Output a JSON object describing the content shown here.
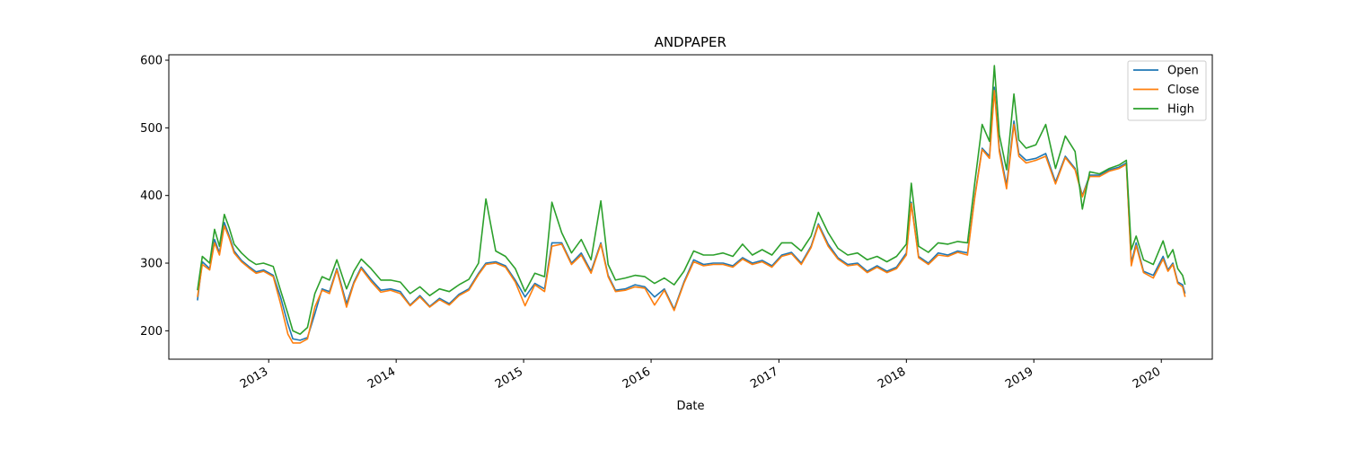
{
  "chart_data": {
    "type": "line",
    "title": "ANDPAPER",
    "xlabel": "Date",
    "ylabel": "",
    "xlim": [
      "2012-03-21",
      "2020-05-26"
    ],
    "ylim": [
      158,
      608
    ],
    "x_ticks": [
      "2013-01-01",
      "2014-01-01",
      "2015-01-01",
      "2016-01-01",
      "2017-01-01",
      "2018-01-01",
      "2019-01-01",
      "2020-01-01"
    ],
    "x_tick_labels": [
      "2013",
      "2014",
      "2015",
      "2016",
      "2017",
      "2018",
      "2019",
      "2020"
    ],
    "y_ticks": [
      200,
      300,
      400,
      500,
      600
    ],
    "y_tick_labels": [
      "200",
      "300",
      "400",
      "500",
      "600"
    ],
    "grid": false,
    "legend_position": "top-right",
    "x": [
      "2012-06-11",
      "2012-06-25",
      "2012-07-16",
      "2012-07-30",
      "2012-08-13",
      "2012-08-27",
      "2012-09-10",
      "2012-09-24",
      "2012-10-15",
      "2012-11-05",
      "2012-11-26",
      "2012-12-17",
      "2013-01-14",
      "2013-02-04",
      "2013-02-25",
      "2013-03-11",
      "2013-04-01",
      "2013-04-22",
      "2013-05-13",
      "2013-06-03",
      "2013-06-24",
      "2013-07-15",
      "2013-08-12",
      "2013-09-02",
      "2013-09-23",
      "2013-10-21",
      "2013-11-18",
      "2013-12-16",
      "2014-01-13",
      "2014-02-10",
      "2014-03-10",
      "2014-04-07",
      "2014-05-05",
      "2014-06-02",
      "2014-06-30",
      "2014-07-28",
      "2014-08-25",
      "2014-09-15",
      "2014-10-13",
      "2014-11-10",
      "2014-12-08",
      "2015-01-05",
      "2015-02-02",
      "2015-03-02",
      "2015-03-23",
      "2015-04-20",
      "2015-05-18",
      "2015-06-15",
      "2015-07-13",
      "2015-08-10",
      "2015-08-31",
      "2015-09-21",
      "2015-10-19",
      "2015-11-16",
      "2015-12-14",
      "2016-01-11",
      "2016-02-08",
      "2016-03-07",
      "2016-04-04",
      "2016-05-02",
      "2016-05-30",
      "2016-06-27",
      "2016-07-25",
      "2016-08-22",
      "2016-09-19",
      "2016-10-17",
      "2016-11-14",
      "2016-12-12",
      "2017-01-09",
      "2017-02-06",
      "2017-03-06",
      "2017-04-03",
      "2017-04-24",
      "2017-05-22",
      "2017-06-19",
      "2017-07-17",
      "2017-08-14",
      "2017-09-11",
      "2017-10-09",
      "2017-11-06",
      "2017-12-04",
      "2018-01-01",
      "2018-01-15",
      "2018-02-05",
      "2018-03-05",
      "2018-04-02",
      "2018-04-30",
      "2018-05-28",
      "2018-06-25",
      "2018-07-16",
      "2018-08-06",
      "2018-08-27",
      "2018-09-10",
      "2018-09-24",
      "2018-10-15",
      "2018-11-05",
      "2018-11-19",
      "2018-12-10",
      "2019-01-07",
      "2019-02-04",
      "2019-03-04",
      "2019-04-01",
      "2019-04-29",
      "2019-05-20",
      "2019-06-10",
      "2019-07-08",
      "2019-08-05",
      "2019-09-02",
      "2019-09-23",
      "2019-10-07",
      "2019-10-21",
      "2019-11-11",
      "2019-12-09",
      "2020-01-06",
      "2020-01-20",
      "2020-02-03",
      "2020-02-17",
      "2020-03-02",
      "2020-03-09"
    ],
    "series": [
      {
        "name": "Open",
        "values": [
          245,
          302,
          292,
          335,
          315,
          360,
          340,
          318,
          304,
          295,
          287,
          290,
          282,
          250,
          210,
          188,
          186,
          190,
          225,
          262,
          258,
          292,
          240,
          272,
          294,
          276,
          260,
          262,
          258,
          238,
          252,
          236,
          248,
          240,
          254,
          262,
          285,
          300,
          302,
          296,
          275,
          250,
          270,
          262,
          330,
          330,
          300,
          315,
          288,
          330,
          282,
          260,
          262,
          268,
          265,
          250,
          262,
          232,
          272,
          305,
          298,
          300,
          300,
          296,
          308,
          300,
          304,
          296,
          312,
          316,
          300,
          325,
          358,
          328,
          308,
          298,
          300,
          288,
          296,
          288,
          294,
          315,
          390,
          310,
          300,
          315,
          312,
          318,
          315,
          400,
          470,
          458,
          560,
          470,
          415,
          510,
          462,
          452,
          455,
          462,
          420,
          458,
          440,
          400,
          430,
          430,
          438,
          442,
          448,
          300,
          330,
          288,
          282,
          310,
          290,
          300,
          272,
          268,
          255
        ]
      },
      {
        "name": "Close",
        "values": [
          250,
          298,
          290,
          330,
          312,
          355,
          337,
          315,
          302,
          293,
          285,
          288,
          280,
          240,
          195,
          182,
          182,
          188,
          235,
          260,
          255,
          290,
          235,
          270,
          292,
          273,
          257,
          260,
          255,
          237,
          250,
          235,
          246,
          238,
          252,
          260,
          283,
          298,
          300,
          294,
          272,
          237,
          268,
          258,
          325,
          328,
          298,
          312,
          285,
          328,
          280,
          258,
          260,
          265,
          263,
          238,
          260,
          230,
          270,
          302,
          296,
          298,
          298,
          294,
          306,
          298,
          302,
          294,
          310,
          314,
          298,
          323,
          356,
          325,
          306,
          296,
          298,
          286,
          294,
          286,
          292,
          312,
          388,
          308,
          298,
          312,
          310,
          316,
          312,
          398,
          468,
          455,
          555,
          465,
          410,
          505,
          458,
          448,
          452,
          458,
          417,
          456,
          438,
          398,
          428,
          428,
          436,
          440,
          446,
          296,
          326,
          286,
          278,
          306,
          288,
          298,
          270,
          265,
          250
        ]
      },
      {
        "name": "High",
        "values": [
          260,
          310,
          300,
          350,
          325,
          372,
          352,
          328,
          315,
          305,
          298,
          300,
          295,
          260,
          225,
          200,
          195,
          205,
          255,
          280,
          275,
          305,
          262,
          288,
          306,
          292,
          275,
          275,
          272,
          255,
          265,
          252,
          262,
          258,
          268,
          276,
          300,
          395,
          318,
          310,
          292,
          258,
          285,
          280,
          390,
          345,
          315,
          335,
          305,
          392,
          298,
          275,
          278,
          282,
          280,
          270,
          278,
          268,
          288,
          318,
          312,
          312,
          315,
          310,
          328,
          312,
          320,
          312,
          330,
          330,
          318,
          340,
          375,
          345,
          322,
          312,
          315,
          305,
          310,
          302,
          310,
          328,
          418,
          325,
          316,
          330,
          328,
          332,
          330,
          420,
          505,
          480,
          592,
          490,
          438,
          550,
          482,
          470,
          475,
          505,
          440,
          488,
          465,
          380,
          435,
          432,
          440,
          445,
          452,
          320,
          340,
          305,
          298,
          333,
          308,
          320,
          292,
          282,
          268
        ]
      }
    ]
  },
  "colors": {
    "open": "#1f77b4",
    "close": "#ff7f0e",
    "high": "#2ca02c"
  }
}
